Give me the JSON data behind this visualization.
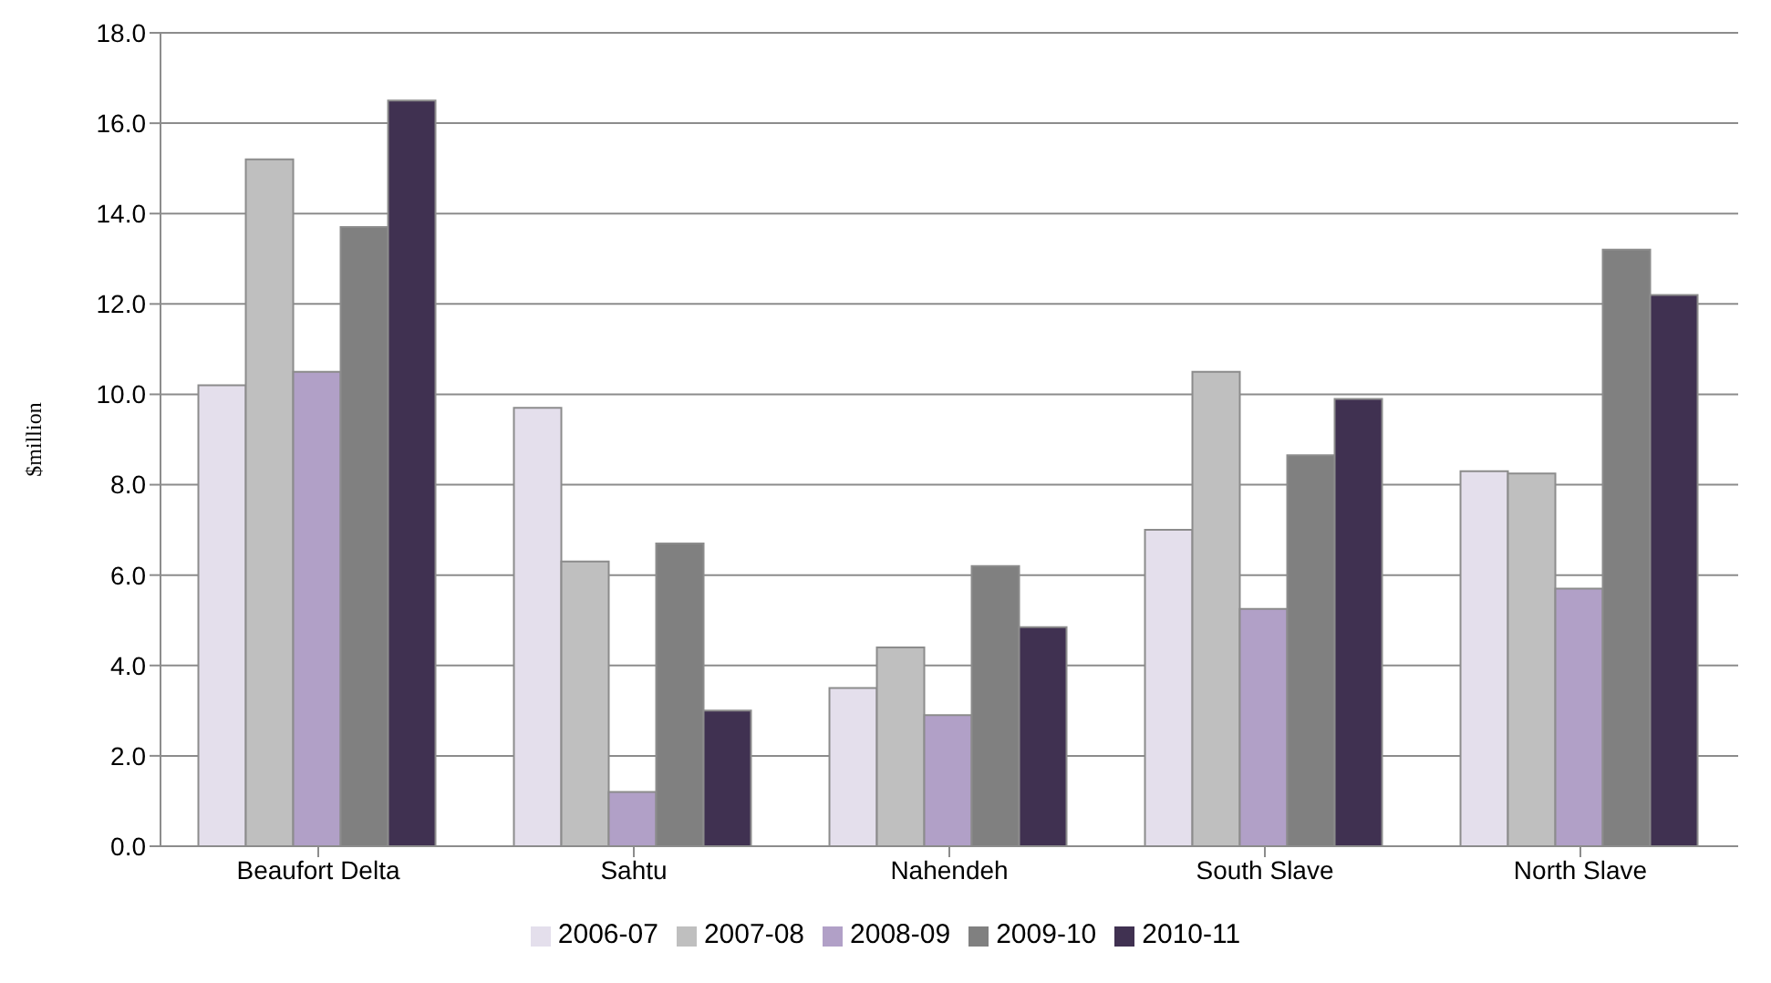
{
  "chart_data": {
    "type": "bar",
    "ylabel": "$million",
    "categories": [
      "Beaufort Delta",
      "Sahtu",
      "Nahendeh",
      "South Slave",
      "North Slave"
    ],
    "series": [
      {
        "name": "2006-07",
        "color": "#e4dfec",
        "values": [
          10.2,
          9.7,
          3.5,
          7.0,
          8.3
        ]
      },
      {
        "name": "2007-08",
        "color": "#bfbfbf",
        "values": [
          15.2,
          6.3,
          4.4,
          10.5,
          8.25
        ]
      },
      {
        "name": "2008-09",
        "color": "#b1a0c7",
        "values": [
          10.5,
          1.2,
          2.9,
          5.25,
          5.7
        ]
      },
      {
        "name": "2009-10",
        "color": "#808080",
        "values": [
          13.7,
          6.7,
          6.2,
          8.65,
          13.2
        ]
      },
      {
        "name": "2010-11",
        "color": "#403151",
        "values": [
          16.5,
          3.0,
          4.85,
          9.9,
          12.2
        ]
      }
    ],
    "ylim": [
      0,
      18
    ],
    "yticks": [
      {
        "value": 0,
        "label": "0.0"
      },
      {
        "value": 2,
        "label": "2.0"
      },
      {
        "value": 4,
        "label": "4.0"
      },
      {
        "value": 6,
        "label": "6.0"
      },
      {
        "value": 8,
        "label": "8.0"
      },
      {
        "value": 10,
        "label": "10.0"
      },
      {
        "value": 12,
        "label": "12.0"
      },
      {
        "value": 14,
        "label": "14.0"
      },
      {
        "value": 16,
        "label": "16.0"
      },
      {
        "value": 18,
        "label": "18.0"
      }
    ],
    "grid": "y",
    "legend": "bottom"
  }
}
